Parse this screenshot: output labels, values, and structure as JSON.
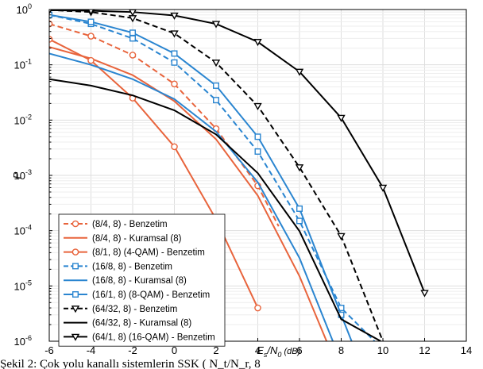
{
  "chart_data": {
    "type": "line",
    "xlabel": "E_s/N_0 (dB)",
    "ylabel": "P",
    "xlim": [
      -6,
      14
    ],
    "ylim_log10": [
      -6,
      0
    ],
    "y_scale": "log",
    "grid": true,
    "legend_placement": "bottom-left",
    "x_ticks": [
      "-6",
      "-4",
      "-2",
      "0",
      "2",
      "4",
      "6",
      "8",
      "10",
      "12",
      "14"
    ],
    "y_ticks": [
      "10^0",
      "10^-1",
      "10^-2",
      "10^-3",
      "10^-4",
      "10^-5",
      "10^-6"
    ],
    "series": [
      {
        "name": "(8/4, 8) - Benzetim",
        "color": "#e8643c",
        "dash": true,
        "marker": "circle",
        "x": [
          -6,
          -4,
          -2,
          0,
          2,
          4,
          5
        ],
        "y": [
          0.55,
          0.33,
          0.15,
          0.045,
          0.007,
          0.00065,
          0.00012
        ],
        "marker_x": [
          -6,
          -4,
          -2,
          0,
          2,
          4
        ]
      },
      {
        "name": "(8/4, 8) - Kuramsal (8)",
        "color": "#e8643c",
        "dash": false,
        "marker": "none",
        "x": [
          -6,
          -4,
          -2,
          0,
          2,
          4,
          6,
          7.3
        ],
        "y": [
          0.21,
          0.13,
          0.065,
          0.022,
          0.0045,
          0.00043,
          1.5e-05,
          1e-06
        ],
        "marker_x": []
      },
      {
        "name": "(8/1, 8) (4-QAM) - Benzetim",
        "color": "#e8643c",
        "dash": false,
        "marker": "circle",
        "x": [
          -6,
          -4,
          -2,
          0,
          2,
          4
        ],
        "y": [
          0.29,
          0.12,
          0.025,
          0.0033,
          0.00016,
          4e-06
        ],
        "marker_x": [
          -6,
          -4,
          -2,
          0,
          4
        ]
      },
      {
        "name": "(16/8, 8) - Benzetim",
        "color": "#2a85d0",
        "dash": true,
        "marker": "square",
        "x": [
          -6,
          -4,
          -2,
          0,
          2,
          4,
          6,
          8,
          9.6
        ],
        "y": [
          0.8,
          0.55,
          0.3,
          0.11,
          0.023,
          0.0027,
          0.00015,
          4e-06,
          1e-06
        ],
        "marker_x": [
          -6,
          -4,
          -2,
          0,
          2,
          4,
          6,
          8
        ]
      },
      {
        "name": "(16/8, 8) - Kuramsal (8)",
        "color": "#2a85d0",
        "dash": false,
        "marker": "none",
        "x": [
          -6,
          -4,
          -2,
          0,
          2,
          4,
          6,
          7.6
        ],
        "y": [
          0.16,
          0.1,
          0.055,
          0.024,
          0.0062,
          0.00075,
          3.2e-05,
          1e-06
        ],
        "marker_x": []
      },
      {
        "name": "(16/1, 8) (8-QAM) - Benzetim",
        "color": "#2a85d0",
        "dash": false,
        "marker": "square",
        "x": [
          -6,
          -4,
          -2,
          0,
          2,
          4,
          6,
          8,
          8.5
        ],
        "y": [
          0.8,
          0.6,
          0.38,
          0.16,
          0.042,
          0.005,
          0.00025,
          3e-06,
          1e-06
        ],
        "marker_x": [
          -6,
          -4,
          -2,
          0,
          2,
          4,
          6,
          8
        ]
      },
      {
        "name": "(64/32, 8) - Benzetim",
        "color": "#000000",
        "dash": true,
        "marker": "triangle-down",
        "x": [
          -6,
          -4,
          -2,
          0,
          2,
          4,
          6,
          8,
          10
        ],
        "y": [
          0.98,
          0.9,
          0.7,
          0.37,
          0.11,
          0.018,
          0.0014,
          8e-05,
          1e-06
        ],
        "marker_x": [
          -6,
          -4,
          -2,
          0,
          2,
          4,
          6,
          8
        ]
      },
      {
        "name": "(64/32, 8) - Kuramsal (8)",
        "color": "#000000",
        "dash": false,
        "marker": "none",
        "x": [
          -6,
          -4,
          -2,
          0,
          2,
          4,
          6,
          8,
          9.9
        ],
        "y": [
          0.055,
          0.042,
          0.028,
          0.015,
          0.0055,
          0.0011,
          9.8e-05,
          2.5e-06,
          1e-06
        ],
        "marker_x": []
      },
      {
        "name": "(64/1, 8) (16-QAM) - Benzetim",
        "color": "#000000",
        "dash": false,
        "marker": "triangle-down",
        "x": [
          -6,
          -4,
          -2,
          0,
          2,
          4,
          6,
          8,
          10,
          12
        ],
        "y": [
          0.97,
          0.95,
          0.9,
          0.78,
          0.55,
          0.26,
          0.075,
          0.011,
          0.0006,
          7.5e-06
        ],
        "marker_x": [
          -6,
          -4,
          -2,
          0,
          2,
          4,
          6,
          8,
          10,
          12
        ]
      }
    ]
  },
  "caption": {
    "text": "Şekil 2: Çok yolu kanallı sistemlerin SSK ( N_t/N_r, 8"
  }
}
